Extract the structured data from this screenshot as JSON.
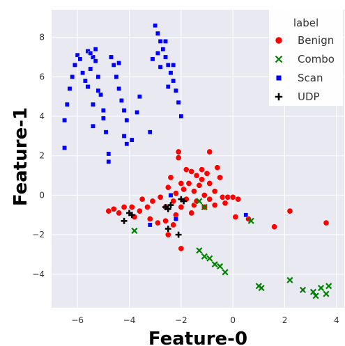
{
  "chart_data": {
    "type": "scatter",
    "xlabel": "Feature-0",
    "ylabel": "Feature-1",
    "xlim": [
      -7.0,
      4.3
    ],
    "ylim": [
      -5.7,
      9.4
    ],
    "x_ticks": [
      -6,
      -4,
      -2,
      0,
      2,
      4
    ],
    "y_ticks": [
      -4,
      -2,
      0,
      2,
      4,
      6,
      8
    ],
    "grid": true,
    "background": "#e9e9f2",
    "grid_color": "#ffffff",
    "legend": {
      "title": "label",
      "placement": "top-right"
    },
    "series": [
      {
        "name": "Benign",
        "marker": "circle",
        "color": "#ff0000",
        "points": [
          [
            -2.1,
            2.2
          ],
          [
            -2.1,
            1.9
          ],
          [
            -0.9,
            2.2
          ],
          [
            -0.6,
            1.4
          ],
          [
            -0.5,
            0.9
          ],
          [
            -2.5,
            0.4
          ],
          [
            -2.4,
            0.9
          ],
          [
            -1.8,
            1.3
          ],
          [
            -1.6,
            1.2
          ],
          [
            -1.4,
            1.0
          ],
          [
            -1.2,
            1.3
          ],
          [
            -1.0,
            1.1
          ],
          [
            -0.9,
            0.6
          ],
          [
            -0.7,
            0.2
          ],
          [
            -0.4,
            -0.1
          ],
          [
            -0.2,
            -0.1
          ],
          [
            0.0,
            -0.1
          ],
          [
            0.2,
            -0.2
          ],
          [
            -2.8,
            -0.1
          ],
          [
            -3.1,
            -0.3
          ],
          [
            -3.5,
            -0.2
          ],
          [
            -3.3,
            -0.6
          ],
          [
            -3.6,
            -0.8
          ],
          [
            -3.9,
            -0.6
          ],
          [
            -4.2,
            -0.6
          ],
          [
            -4.6,
            -0.7
          ],
          [
            -4.4,
            -0.9
          ],
          [
            -4.8,
            -0.8
          ],
          [
            -3.8,
            -1.1
          ],
          [
            -3.2,
            -1.2
          ],
          [
            -2.9,
            -1.4
          ],
          [
            -2.6,
            -1.3
          ],
          [
            -2.5,
            -2.0
          ],
          [
            -2.0,
            -2.7
          ],
          [
            -2.3,
            -1.5
          ],
          [
            -2.0,
            -0.6
          ],
          [
            -1.5,
            -0.5
          ],
          [
            -1.1,
            -0.6
          ],
          [
            -0.7,
            -0.5
          ],
          [
            0.1,
            -1.1
          ],
          [
            0.6,
            -1.2
          ],
          [
            1.6,
            -1.6
          ],
          [
            2.2,
            -0.8
          ],
          [
            3.6,
            -1.4
          ],
          [
            -2.2,
            0.1
          ],
          [
            -1.9,
            0.3
          ],
          [
            -1.7,
            0.6
          ],
          [
            -1.5,
            0.2
          ],
          [
            -1.3,
            0.5
          ],
          [
            -1.1,
            0.0
          ],
          [
            -2.6,
            -0.6
          ],
          [
            -2.3,
            -0.3
          ],
          [
            -1.8,
            -0.2
          ],
          [
            -0.9,
            -0.2
          ],
          [
            -0.3,
            -0.4
          ],
          [
            -1.6,
            -0.9
          ],
          [
            -2.2,
            -1.0
          ],
          [
            -1.2,
            0.8
          ],
          [
            -2.0,
            0.6
          ],
          [
            -1.4,
            -0.3
          ]
        ]
      },
      {
        "name": "Combo",
        "marker": "x",
        "color": "#008000",
        "points": [
          [
            -1.3,
            -0.3
          ],
          [
            -1.1,
            -0.6
          ],
          [
            -3.8,
            -1.8
          ],
          [
            0.7,
            -1.3
          ],
          [
            -1.3,
            -2.8
          ],
          [
            -1.1,
            -3.1
          ],
          [
            -0.9,
            -3.2
          ],
          [
            -0.7,
            -3.5
          ],
          [
            -0.5,
            -3.6
          ],
          [
            -0.3,
            -3.9
          ],
          [
            1.0,
            -4.6
          ],
          [
            1.1,
            -4.7
          ],
          [
            2.2,
            -4.3
          ],
          [
            2.7,
            -4.8
          ],
          [
            3.1,
            -4.9
          ],
          [
            3.2,
            -5.1
          ],
          [
            3.4,
            -4.7
          ],
          [
            3.6,
            -5.0
          ],
          [
            3.7,
            -4.6
          ]
        ]
      },
      {
        "name": "Scan",
        "marker": "square",
        "color": "#0000ff",
        "points": [
          [
            -6.5,
            2.4
          ],
          [
            -6.5,
            3.8
          ],
          [
            -6.4,
            4.6
          ],
          [
            -6.3,
            5.4
          ],
          [
            -6.2,
            6.0
          ],
          [
            -6.1,
            6.6
          ],
          [
            -6.0,
            7.1
          ],
          [
            -5.9,
            6.9
          ],
          [
            -5.8,
            6.2
          ],
          [
            -5.7,
            5.8
          ],
          [
            -5.6,
            5.5
          ],
          [
            -5.5,
            6.4
          ],
          [
            -5.4,
            7.0
          ],
          [
            -5.3,
            6.8
          ],
          [
            -5.2,
            6.0
          ],
          [
            -5.1,
            5.1
          ],
          [
            -5.0,
            4.3
          ],
          [
            -4.9,
            3.2
          ],
          [
            -4.8,
            2.1
          ],
          [
            -4.8,
            1.7
          ],
          [
            -5.6,
            7.3
          ],
          [
            -5.5,
            7.2
          ],
          [
            -5.3,
            7.4
          ],
          [
            -5.2,
            5.3
          ],
          [
            -5.4,
            4.6
          ],
          [
            -4.7,
            7.0
          ],
          [
            -4.6,
            6.6
          ],
          [
            -4.5,
            6.0
          ],
          [
            -4.4,
            5.4
          ],
          [
            -4.3,
            4.8
          ],
          [
            -4.2,
            4.3
          ],
          [
            -4.1,
            3.8
          ],
          [
            -4.1,
            2.6
          ],
          [
            -3.9,
            2.8
          ],
          [
            -4.4,
            6.7
          ],
          [
            -5.0,
            3.9
          ],
          [
            -5.4,
            3.5
          ],
          [
            -3.7,
            4.2
          ],
          [
            -3.2,
            3.2
          ],
          [
            -3.6,
            5.0
          ],
          [
            -3.0,
            8.6
          ],
          [
            -2.9,
            8.2
          ],
          [
            -2.8,
            7.8
          ],
          [
            -2.7,
            7.4
          ],
          [
            -2.6,
            7.0
          ],
          [
            -2.5,
            6.6
          ],
          [
            -2.4,
            6.2
          ],
          [
            -2.3,
            5.8
          ],
          [
            -2.2,
            5.3
          ],
          [
            -2.1,
            4.7
          ],
          [
            -2.0,
            4.0
          ],
          [
            -2.9,
            7.2
          ],
          [
            -2.8,
            6.5
          ],
          [
            -3.1,
            6.9
          ],
          [
            -2.6,
            7.8
          ],
          [
            -2.5,
            5.5
          ],
          [
            -2.3,
            6.6
          ],
          [
            -4.2,
            3.0
          ],
          [
            -2.4,
            0.0
          ],
          [
            0.5,
            -1.0
          ],
          [
            -3.2,
            -1.5
          ],
          [
            -2.2,
            -1.2
          ]
        ]
      },
      {
        "name": "UDP",
        "marker": "plus",
        "color": "#000000",
        "points": [
          [
            -4.0,
            -0.9
          ],
          [
            -4.2,
            -1.3
          ],
          [
            -2.6,
            -0.6
          ],
          [
            -2.5,
            -0.7
          ],
          [
            -2.0,
            -0.2
          ],
          [
            -1.9,
            -0.3
          ],
          [
            -2.5,
            -1.7
          ],
          [
            -2.1,
            -2.0
          ],
          [
            -2.4,
            -0.5
          ],
          [
            -3.9,
            -1.0
          ]
        ]
      }
    ]
  }
}
